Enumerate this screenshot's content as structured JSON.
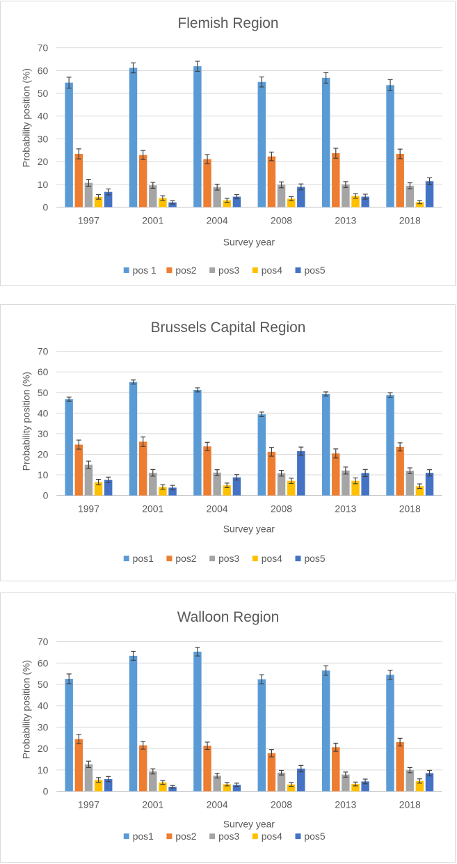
{
  "colors": {
    "pos1": "#5b9bd5",
    "pos2": "#ed7d31",
    "pos3": "#a5a5a5",
    "pos4": "#ffc000",
    "pos5": "#4472c4",
    "grid": "#d9d9d9",
    "error_bar": "#404040"
  },
  "chart_data": [
    {
      "type": "bar",
      "title": "Flemish Region",
      "xlabel": "Survey year",
      "ylabel": "Probability position (%)",
      "ylim": [
        0,
        70
      ],
      "yticks": [
        "0",
        "10",
        "20",
        "30",
        "40",
        "50",
        "60",
        "70"
      ],
      "grid": true,
      "legend_position": "bottom",
      "error_bars": true,
      "categories": [
        "1997",
        "2001",
        "2004",
        "2008",
        "2013",
        "2018"
      ],
      "series": [
        {
          "name": "pos 1",
          "values": [
            54.7,
            61.2,
            61.9,
            55.0,
            56.8,
            53.6
          ],
          "errors": [
            2.4,
            2.2,
            2.2,
            2.2,
            2.3,
            2.4
          ]
        },
        {
          "name": "pos2",
          "values": [
            23.4,
            22.9,
            21.1,
            22.3,
            23.7,
            23.4
          ],
          "errors": [
            2.2,
            2.0,
            2.0,
            1.9,
            2.2,
            2.1
          ]
        },
        {
          "name": "pos3",
          "values": [
            10.7,
            9.6,
            8.8,
            9.8,
            9.9,
            9.4
          ],
          "errors": [
            1.5,
            1.3,
            1.3,
            1.3,
            1.3,
            1.3
          ]
        },
        {
          "name": "pos4",
          "values": [
            4.5,
            4.0,
            3.0,
            3.7,
            4.9,
            2.2
          ],
          "errors": [
            1.0,
            1.0,
            0.9,
            0.9,
            1.0,
            0.7
          ]
        },
        {
          "name": "pos5",
          "values": [
            6.7,
            2.1,
            4.6,
            8.9,
            4.6,
            11.4
          ],
          "errors": [
            1.3,
            0.7,
            0.9,
            1.3,
            1.1,
            1.5
          ]
        }
      ]
    },
    {
      "type": "bar",
      "title": "Brussels Capital Region",
      "xlabel": "Survey year",
      "ylabel": "Probability position (%)",
      "ylim": [
        0,
        70
      ],
      "yticks": [
        "0",
        "10",
        "20",
        "30",
        "40",
        "50",
        "60",
        "70"
      ],
      "grid": true,
      "legend_position": "bottom",
      "error_bars": true,
      "categories": [
        "1997",
        "2001",
        "2004",
        "2008",
        "2013",
        "2018"
      ],
      "series": [
        {
          "name": "pos1",
          "values": [
            46.8,
            55.1,
            51.3,
            39.4,
            49.3,
            48.8
          ],
          "errors": [
            1.0,
            1.0,
            1.0,
            1.1,
            1.0,
            1.1
          ]
        },
        {
          "name": "pos2",
          "values": [
            24.7,
            26.1,
            23.8,
            21.2,
            20.4,
            23.6
          ],
          "errors": [
            2.2,
            2.3,
            2.0,
            2.1,
            2.2,
            2.0
          ]
        },
        {
          "name": "pos3",
          "values": [
            14.9,
            11.0,
            11.1,
            10.8,
            12.1,
            12.0
          ],
          "errors": [
            1.8,
            1.6,
            1.4,
            1.4,
            1.7,
            1.4
          ]
        },
        {
          "name": "pos4",
          "values": [
            6.5,
            4.1,
            4.9,
            7.1,
            7.1,
            4.5
          ],
          "errors": [
            1.3,
            1.1,
            1.1,
            1.3,
            1.4,
            1.1
          ]
        },
        {
          "name": "pos5",
          "values": [
            7.6,
            3.8,
            8.8,
            21.5,
            10.9,
            11.0
          ],
          "errors": [
            1.3,
            1.1,
            1.3,
            2.0,
            1.7,
            1.5
          ]
        }
      ]
    },
    {
      "type": "bar",
      "title": "Walloon Region",
      "xlabel": "Survey year",
      "ylabel": "Probability position (%)",
      "ylim": [
        0,
        70
      ],
      "yticks": [
        "0",
        "10",
        "20",
        "30",
        "40",
        "50",
        "60",
        "70"
      ],
      "grid": true,
      "legend_position": "bottom",
      "error_bars": true,
      "categories": [
        "1997",
        "2001",
        "2004",
        "2008",
        "2013",
        "2018"
      ],
      "series": [
        {
          "name": "pos1",
          "values": [
            52.6,
            63.4,
            65.3,
            52.4,
            56.5,
            54.5
          ],
          "errors": [
            2.3,
            2.1,
            2.0,
            2.1,
            2.2,
            2.1
          ]
        },
        {
          "name": "pos2",
          "values": [
            24.4,
            21.5,
            21.3,
            17.8,
            20.6,
            23.0
          ],
          "errors": [
            2.1,
            1.8,
            1.7,
            1.7,
            1.9,
            1.8
          ]
        },
        {
          "name": "pos3",
          "values": [
            12.6,
            9.3,
            7.3,
            8.7,
            7.8,
            9.9
          ],
          "errors": [
            1.5,
            1.2,
            1.1,
            1.1,
            1.2,
            1.2
          ]
        },
        {
          "name": "pos4",
          "values": [
            5.3,
            4.1,
            3.3,
            3.2,
            3.4,
            4.8
          ],
          "errors": [
            1.1,
            0.9,
            0.8,
            0.9,
            0.9,
            1.0
          ]
        },
        {
          "name": "pos5",
          "values": [
            5.7,
            2.1,
            3.0,
            10.6,
            4.6,
            8.5
          ],
          "errors": [
            1.2,
            0.6,
            0.8,
            1.5,
            1.1,
            1.3
          ]
        }
      ]
    }
  ]
}
